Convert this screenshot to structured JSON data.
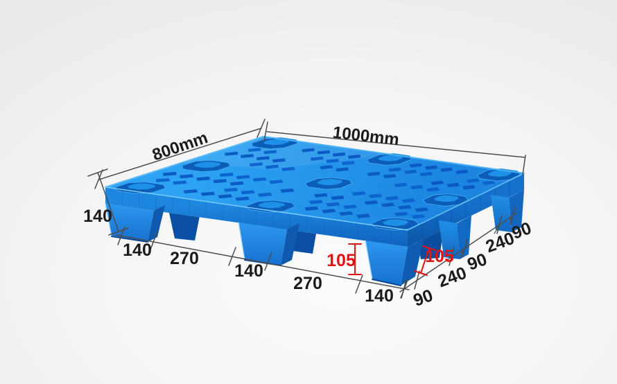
{
  "annotations": {
    "side_length_label": "800mm",
    "front_length_label": "1000mm",
    "pallet_height_label": "140",
    "foot_height_labels": [
      "105",
      "105"
    ],
    "front_edge_segments": [
      "140",
      "270",
      "140",
      "270",
      "140"
    ],
    "right_edge_segments": [
      "90",
      "240",
      "90",
      "240",
      "90"
    ]
  },
  "colors": {
    "pallet_blue_top": "#2AA0F2",
    "pallet_blue_front": "#1B84DF",
    "pallet_blue_dark": "#0A58C0",
    "dimension_line": "#4c4c4c",
    "dimension_text": "#1b1b1b",
    "foot_height_text": "#e51212",
    "background_center": "#fbfbfb",
    "background_edge": "#e9eaeb"
  }
}
